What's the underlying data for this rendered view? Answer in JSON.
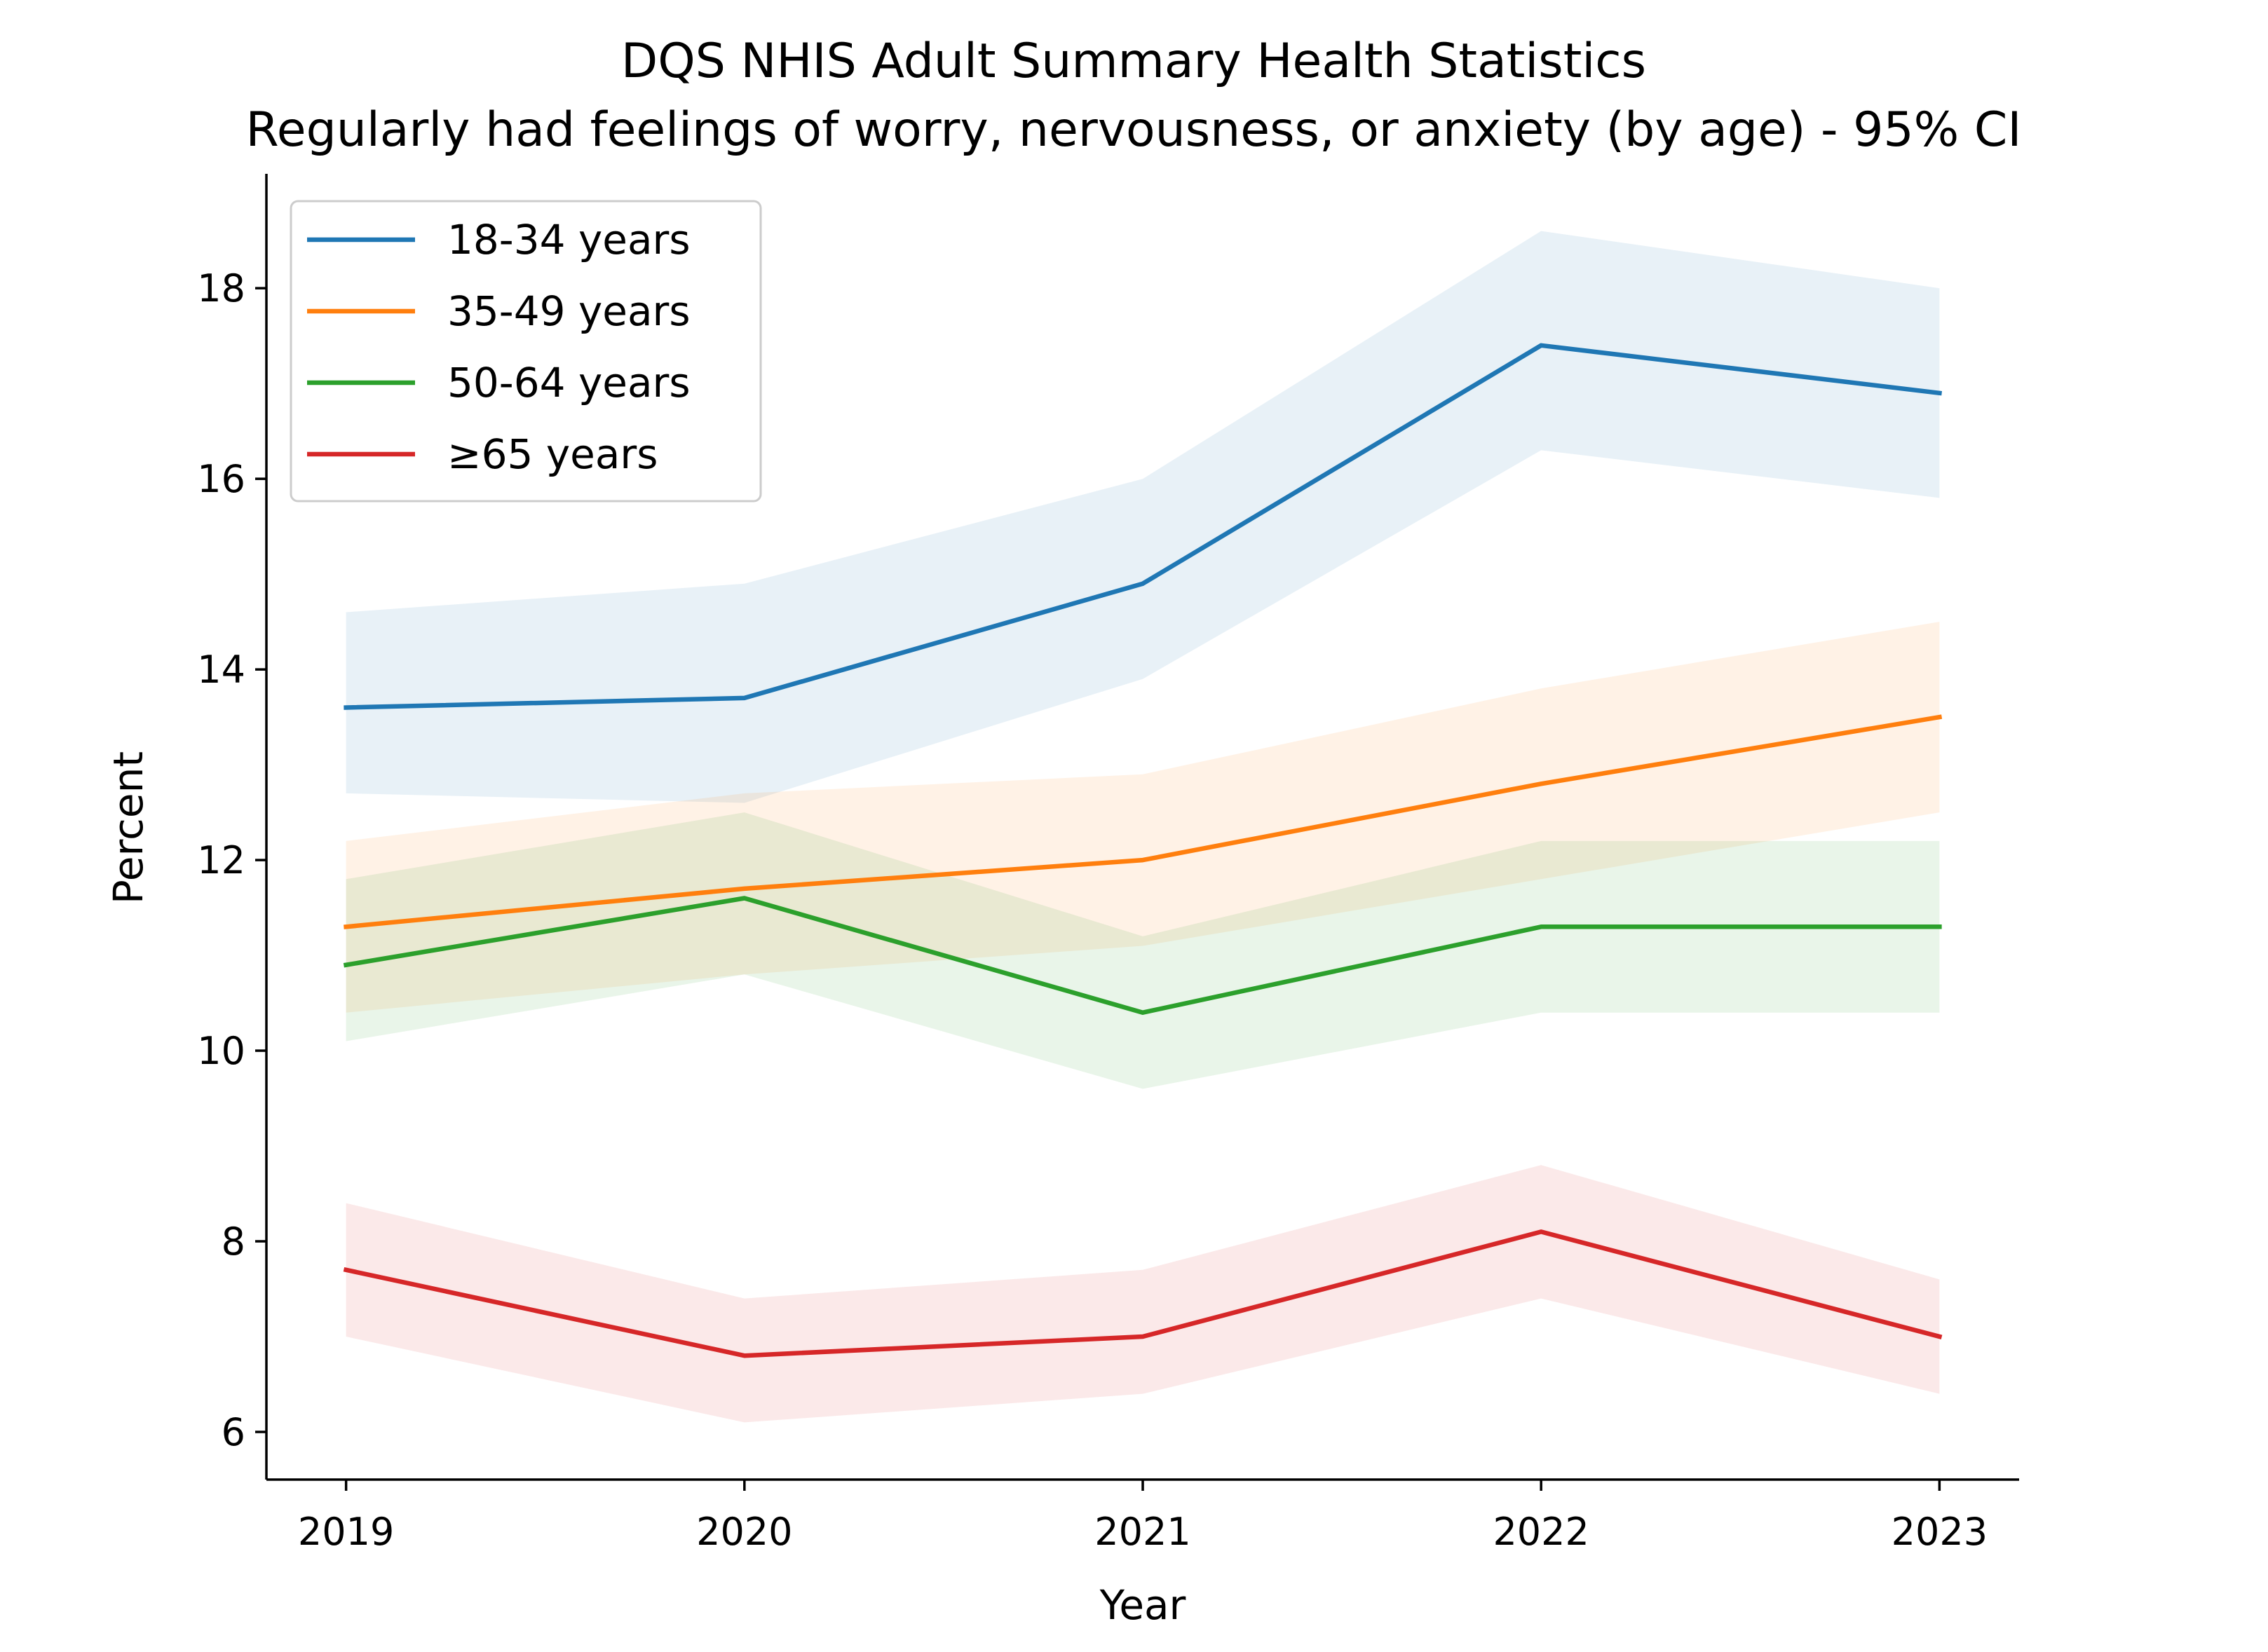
{
  "chart_data": {
    "type": "line",
    "title": "DQS NHIS Adult Summary Health Statistics",
    "subtitle": "Regularly had feelings of worry, nervousness, or anxiety (by age) - 95% CI",
    "xlabel": "Year",
    "ylabel": "Percent",
    "x": [
      "2019",
      "2020",
      "2021",
      "2022",
      "2023"
    ],
    "xlim": [
      2018.8,
      2023.2
    ],
    "ylim": [
      5.5,
      19.2
    ],
    "yticks": [
      "6",
      "8",
      "10",
      "12",
      "14",
      "16",
      "18"
    ],
    "grid": false,
    "legend_position": "top-left",
    "series": [
      {
        "name": "18-34 years",
        "color": "#1f77b4",
        "values": [
          13.6,
          13.7,
          14.9,
          17.4,
          16.9
        ],
        "ci_lower": [
          12.7,
          12.6,
          13.9,
          16.3,
          15.8
        ],
        "ci_upper": [
          14.6,
          14.9,
          16.0,
          18.6,
          18.0
        ]
      },
      {
        "name": "35-49 years",
        "color": "#ff7f0e",
        "values": [
          11.3,
          11.7,
          12.0,
          12.8,
          13.5
        ],
        "ci_lower": [
          10.4,
          10.8,
          11.1,
          11.8,
          12.5
        ],
        "ci_upper": [
          12.2,
          12.7,
          12.9,
          13.8,
          14.5
        ]
      },
      {
        "name": "50-64 years",
        "color": "#2ca02c",
        "values": [
          10.9,
          11.6,
          10.4,
          11.3,
          11.3
        ],
        "ci_lower": [
          10.1,
          10.8,
          9.6,
          10.4,
          10.4
        ],
        "ci_upper": [
          11.8,
          12.5,
          11.2,
          12.2,
          12.2
        ]
      },
      {
        "name": "≥65 years",
        "color": "#d62728",
        "values": [
          7.7,
          6.8,
          7.0,
          8.1,
          7.0
        ],
        "ci_lower": [
          7.0,
          6.1,
          6.4,
          7.4,
          6.4
        ],
        "ci_upper": [
          8.4,
          7.4,
          7.7,
          8.8,
          7.6
        ]
      }
    ]
  }
}
